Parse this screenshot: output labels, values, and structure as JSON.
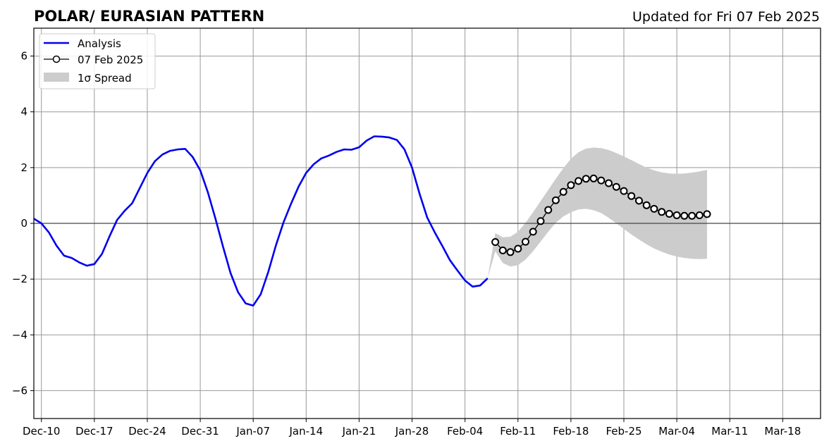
{
  "chart_data": {
    "type": "line",
    "title": "POLAR/ EURASIAN  PATTERN",
    "subtitle": "Updated for Fri 07 Feb 2025",
    "xlabel": "",
    "ylabel": "",
    "xlim": [
      "2024-12-09",
      "2025-03-23"
    ],
    "ylim": [
      -7,
      7
    ],
    "grid": true,
    "legend_position": "top-left",
    "x_ticks": [
      "Dec-10",
      "Dec-17",
      "Dec-24",
      "Dec-31",
      "Jan-07",
      "Jan-14",
      "Jan-21",
      "Jan-28",
      "Feb-04",
      "Feb-11",
      "Feb-18",
      "Feb-25",
      "Mar-04",
      "Mar-11",
      "Mar-18"
    ],
    "x_tick_dates": [
      "2024-12-10",
      "2024-12-17",
      "2024-12-24",
      "2024-12-31",
      "2025-01-07",
      "2025-01-14",
      "2025-01-21",
      "2025-01-28",
      "2025-02-04",
      "2025-02-11",
      "2025-02-18",
      "2025-02-25",
      "2025-03-04",
      "2025-03-11",
      "2025-03-18"
    ],
    "y_ticks": [
      -6,
      -4,
      -2,
      0,
      2,
      4,
      6
    ],
    "y_tick_labels": [
      "−6",
      "−4",
      "−2",
      "0",
      "2",
      "4",
      "6"
    ],
    "legend": [
      {
        "label": "Analysis",
        "kind": "line",
        "color": "#0000ee"
      },
      {
        "label": "07 Feb 2025",
        "kind": "marker-line",
        "color": "#000000"
      },
      {
        "label": "1σ Spread",
        "kind": "patch",
        "color": "#cccccc"
      }
    ],
    "series": [
      {
        "name": "Analysis",
        "color": "#0000ee",
        "x": [
          "2024-12-09",
          "2024-12-10",
          "2024-12-11",
          "2024-12-12",
          "2024-12-13",
          "2024-12-14",
          "2024-12-15",
          "2024-12-16",
          "2024-12-17",
          "2024-12-18",
          "2024-12-19",
          "2024-12-20",
          "2024-12-21",
          "2024-12-22",
          "2024-12-23",
          "2024-12-24",
          "2024-12-25",
          "2024-12-26",
          "2024-12-27",
          "2024-12-28",
          "2024-12-29",
          "2024-12-30",
          "2024-12-31",
          "2025-01-01",
          "2025-01-02",
          "2025-01-03",
          "2025-01-04",
          "2025-01-05",
          "2025-01-06",
          "2025-01-07",
          "2025-01-08",
          "2025-01-09",
          "2025-01-10",
          "2025-01-11",
          "2025-01-12",
          "2025-01-13",
          "2025-01-14",
          "2025-01-15",
          "2025-01-16",
          "2025-01-17",
          "2025-01-18",
          "2025-01-19",
          "2025-01-20",
          "2025-01-21",
          "2025-01-22",
          "2025-01-23",
          "2025-01-24",
          "2025-01-25",
          "2025-01-26",
          "2025-01-27",
          "2025-01-28",
          "2025-01-29",
          "2025-01-30",
          "2025-01-31",
          "2025-02-01",
          "2025-02-02",
          "2025-02-03",
          "2025-02-04",
          "2025-02-05",
          "2025-02-06",
          "2025-02-07"
        ],
        "values": [
          0.17,
          0.0,
          -0.33,
          -0.8,
          -1.16,
          -1.24,
          -1.4,
          -1.52,
          -1.46,
          -1.1,
          -0.47,
          0.12,
          0.45,
          0.72,
          1.26,
          1.81,
          2.23,
          2.47,
          2.6,
          2.65,
          2.67,
          2.38,
          1.9,
          1.12,
          0.18,
          -0.83,
          -1.78,
          -2.47,
          -2.87,
          -2.95,
          -2.54,
          -1.73,
          -0.79,
          0.03,
          0.7,
          1.32,
          1.81,
          2.12,
          2.33,
          2.43,
          2.56,
          2.65,
          2.64,
          2.73,
          2.97,
          3.12,
          3.11,
          3.08,
          2.99,
          2.65,
          2.0,
          1.05,
          0.21,
          -0.32,
          -0.81,
          -1.32,
          -1.69,
          -2.05,
          -2.27,
          -2.23,
          -1.97
        ]
      },
      {
        "name": "07 Feb 2025",
        "color": "#000000",
        "x": [
          "2025-02-08",
          "2025-02-09",
          "2025-02-10",
          "2025-02-11",
          "2025-02-12",
          "2025-02-13",
          "2025-02-14",
          "2025-02-15",
          "2025-02-16",
          "2025-02-17",
          "2025-02-18",
          "2025-02-19",
          "2025-02-20",
          "2025-02-21",
          "2025-02-22",
          "2025-02-23",
          "2025-02-24",
          "2025-02-25",
          "2025-02-26",
          "2025-02-27",
          "2025-02-28",
          "2025-03-01",
          "2025-03-02",
          "2025-03-03",
          "2025-03-04",
          "2025-03-05",
          "2025-03-06",
          "2025-03-07",
          "2025-03-08"
        ],
        "values": [
          -0.67,
          -0.97,
          -1.03,
          -0.91,
          -0.66,
          -0.3,
          0.08,
          0.48,
          0.83,
          1.13,
          1.37,
          1.52,
          1.6,
          1.61,
          1.54,
          1.44,
          1.31,
          1.16,
          0.98,
          0.81,
          0.65,
          0.52,
          0.41,
          0.34,
          0.29,
          0.27,
          0.27,
          0.29,
          0.33
        ]
      }
    ],
    "spread": {
      "name": "1σ Spread",
      "color": "#cccccc",
      "x": [
        "2025-02-07",
        "2025-02-08",
        "2025-02-09",
        "2025-02-10",
        "2025-02-11",
        "2025-02-12",
        "2025-02-13",
        "2025-02-14",
        "2025-02-15",
        "2025-02-16",
        "2025-02-17",
        "2025-02-18",
        "2025-02-19",
        "2025-02-20",
        "2025-02-21",
        "2025-02-22",
        "2025-02-23",
        "2025-02-24",
        "2025-02-25",
        "2025-02-26",
        "2025-02-27",
        "2025-02-28",
        "2025-03-01",
        "2025-03-02",
        "2025-03-03",
        "2025-03-04",
        "2025-03-05",
        "2025-03-06",
        "2025-03-07",
        "2025-03-08"
      ],
      "upper": [
        -1.97,
        -0.35,
        -0.5,
        -0.48,
        -0.3,
        0.02,
        0.4,
        0.8,
        1.2,
        1.6,
        1.98,
        2.32,
        2.55,
        2.68,
        2.72,
        2.7,
        2.63,
        2.52,
        2.4,
        2.27,
        2.13,
        2.0,
        1.9,
        1.83,
        1.79,
        1.78,
        1.79,
        1.82,
        1.86,
        1.92
      ],
      "lower": [
        -1.97,
        -1.0,
        -1.42,
        -1.55,
        -1.5,
        -1.3,
        -1.0,
        -0.65,
        -0.3,
        0.02,
        0.25,
        0.4,
        0.5,
        0.52,
        0.47,
        0.37,
        0.2,
        0.0,
        -0.2,
        -0.4,
        -0.58,
        -0.75,
        -0.9,
        -1.02,
        -1.12,
        -1.19,
        -1.24,
        -1.27,
        -1.28,
        -1.27
      ]
    }
  }
}
